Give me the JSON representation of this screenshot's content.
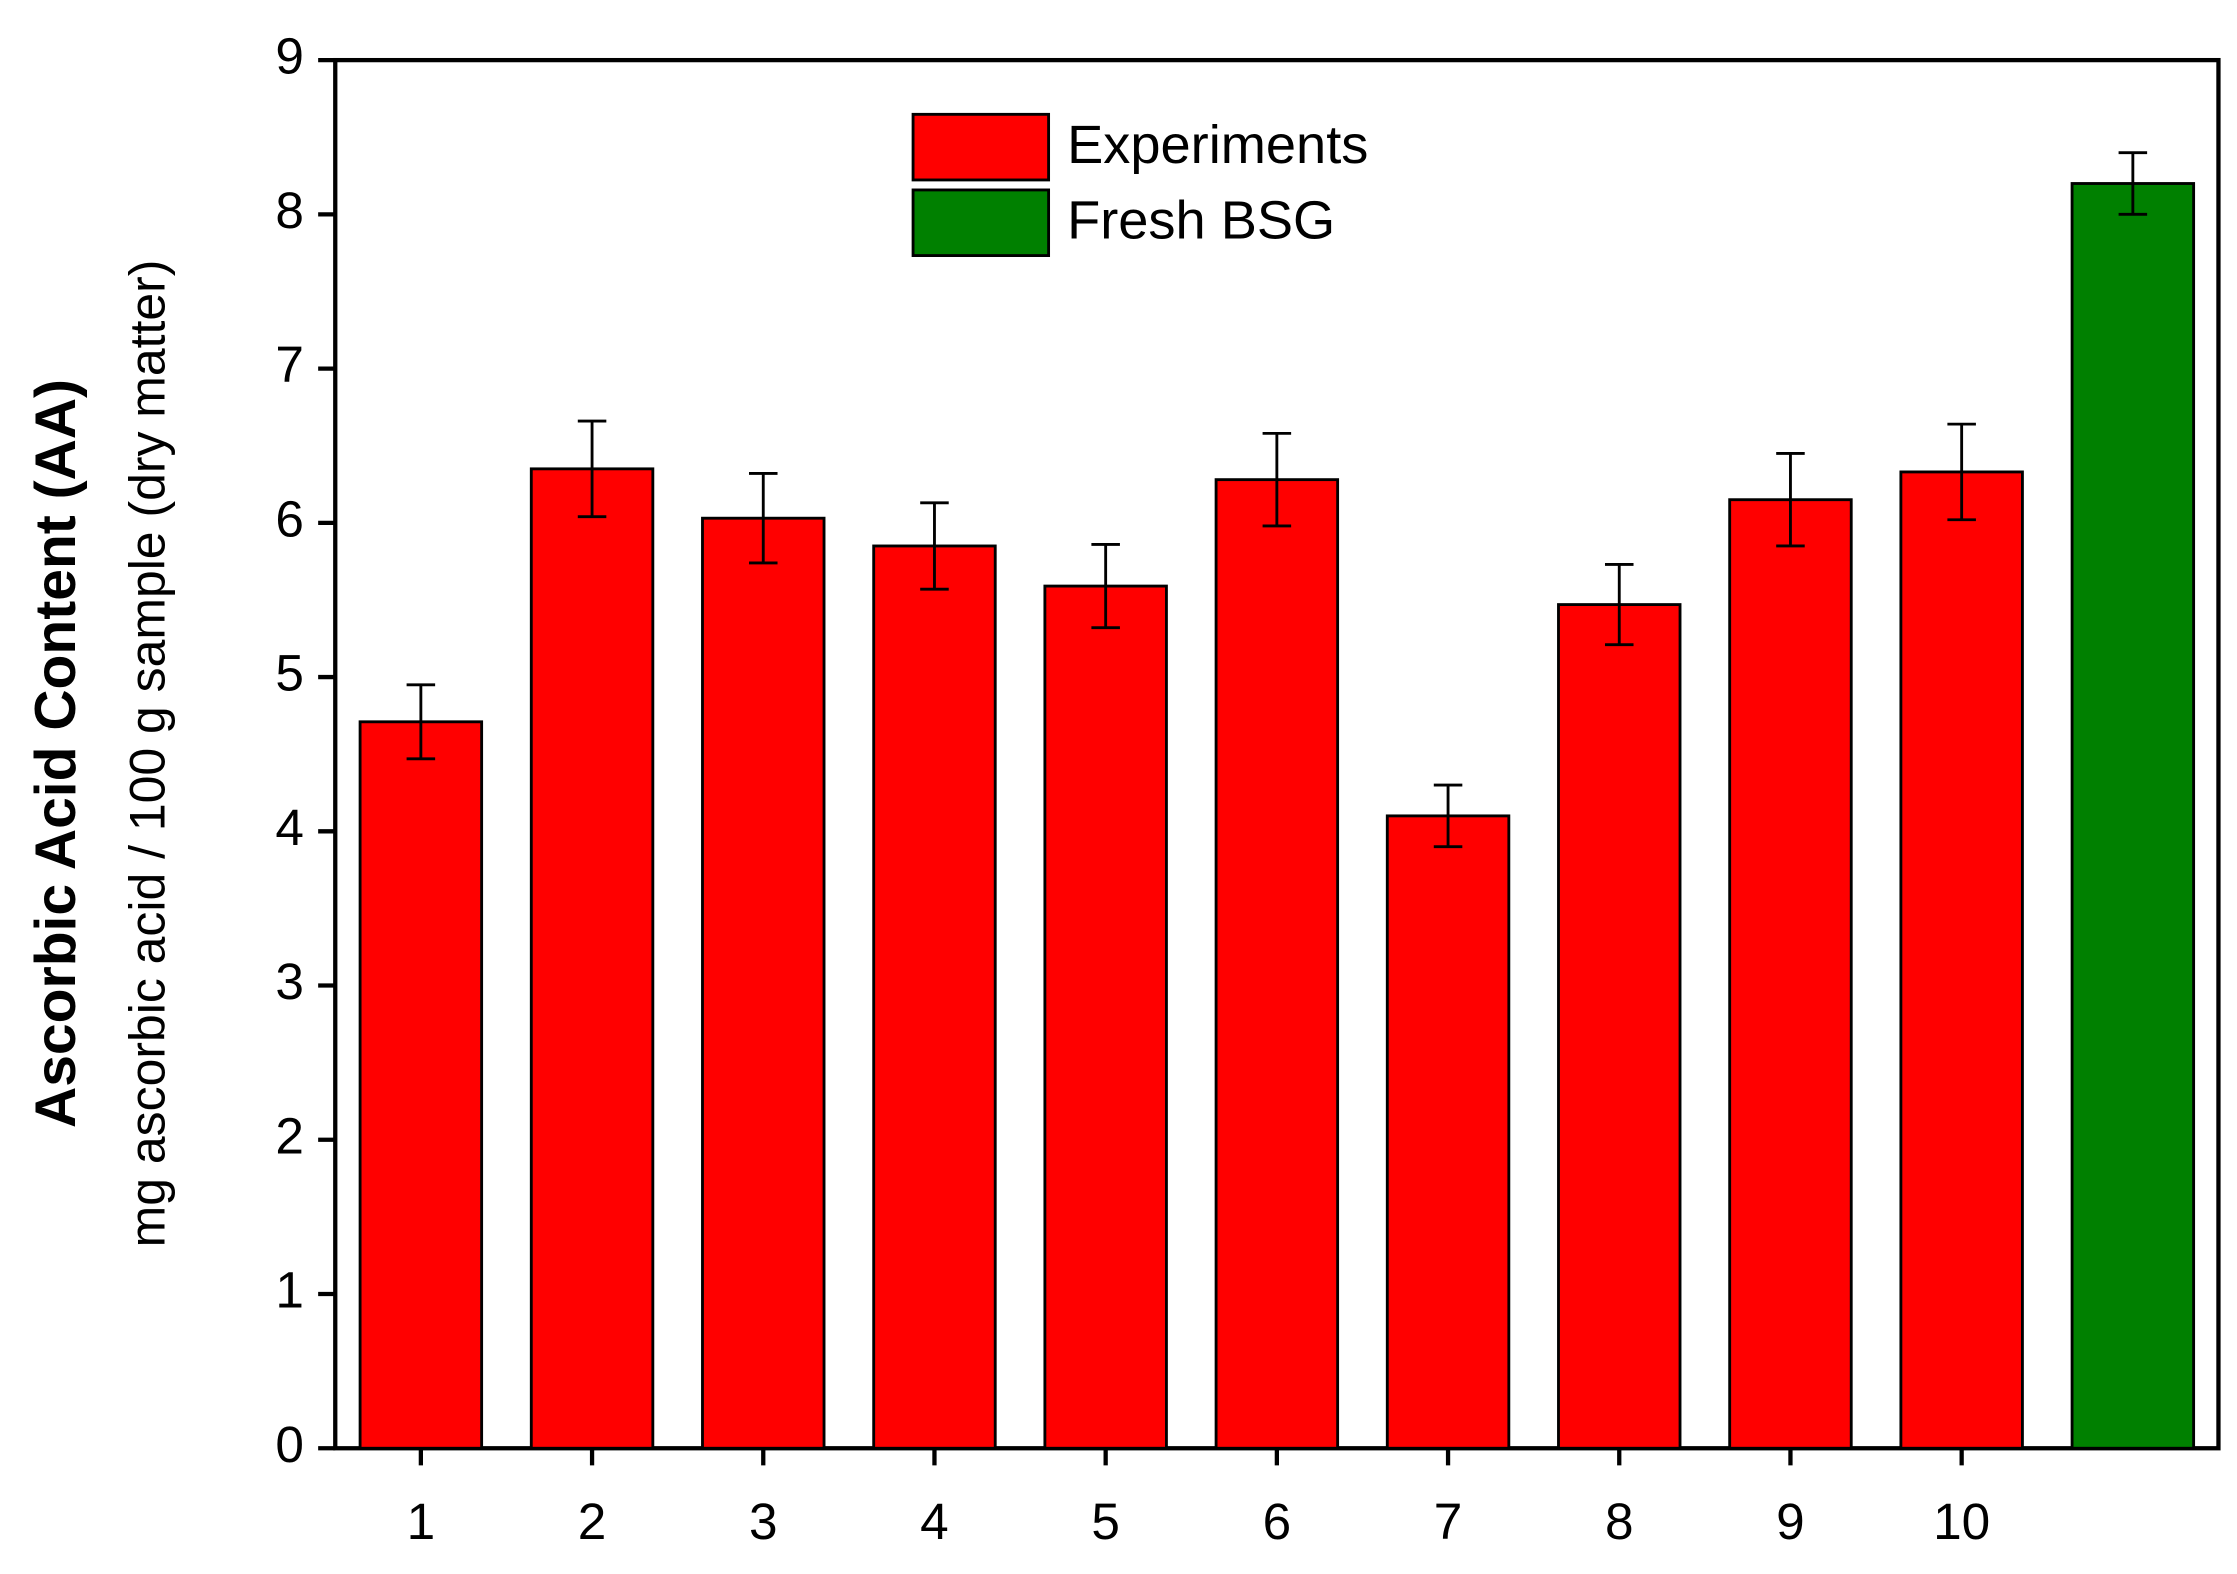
{
  "chart_data": {
    "type": "bar",
    "ylabel": "Ascorbic Acid Content (AA)",
    "ylabel_units": "mg ascorbic acid / 100 g sample (dry matter)",
    "categories": [
      "1",
      "2",
      "3",
      "4",
      "5",
      "6",
      "7",
      "8",
      "9",
      "10",
      null
    ],
    "series": [
      {
        "name": "Experiments",
        "color": "#ff0000",
        "values": [
          4.71,
          6.35,
          6.03,
          5.85,
          5.59,
          6.28,
          4.1,
          5.47,
          6.15,
          6.33,
          null
        ],
        "errors": [
          0.24,
          0.31,
          0.29,
          0.28,
          0.27,
          0.3,
          0.2,
          0.26,
          0.3,
          0.31,
          null
        ]
      },
      {
        "name": "Fresh BSG",
        "color": "#008000",
        "values": [
          null,
          null,
          null,
          null,
          null,
          null,
          null,
          null,
          null,
          null,
          8.2
        ],
        "errors": [
          null,
          null,
          null,
          null,
          null,
          null,
          null,
          null,
          null,
          null,
          0.2
        ]
      }
    ],
    "ylim": [
      0,
      9
    ],
    "yticks": [
      0,
      1,
      2,
      3,
      4,
      5,
      6,
      7,
      8,
      9
    ],
    "legend": "top"
  }
}
